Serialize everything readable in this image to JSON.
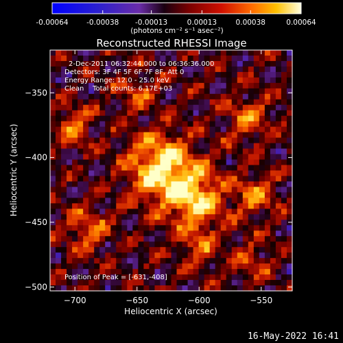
{
  "chart_data": {
    "type": "heatmap",
    "title": "Reconstructed RHESSI Image",
    "xlabel": "Heliocentric X (arcsec)",
    "ylabel": "Heliocentric Y (arcsec)",
    "xlim": [
      -720,
      -525
    ],
    "ylim": [
      -503,
      -317
    ],
    "xticks": [
      -700,
      -650,
      -600,
      -550
    ],
    "yticks": [
      -350,
      -400,
      -450,
      -500
    ],
    "colorbar": {
      "ticks": [
        -0.00064,
        -0.00038,
        -0.00013,
        0.00013,
        0.00038,
        0.00064
      ],
      "tick_labels": [
        "-0.00064",
        "-0.00038",
        "-0.00013",
        "0.00013",
        "0.00038",
        "0.00064"
      ],
      "unit_label": "(photons cm⁻² s⁻¹ asec⁻²)",
      "range": [
        -0.00064,
        0.00064
      ]
    },
    "info_lines": [
      "2-Dec-2011 06:32:44.000 to 06:36:36.000",
      "Detectors: 3F 4F 5F 6F 7F 8F, Att 0",
      "Energy Range: 12.0 - 25.0 keV",
      "Clean    Total counts: 6.17E+03"
    ],
    "peak_label": "Position of Peak = [-631,-408]",
    "peak": {
      "x": -631,
      "y": -408
    },
    "grid": false
  },
  "footer_timestamp": "16-May-2022 16:41",
  "colors": {
    "background": "#000000",
    "foreground": "#ffffff",
    "colormap": [
      "#0000ff",
      "#3a1fb8",
      "#6a2ca8",
      "#2a0000",
      "#b00000",
      "#ff5000",
      "#ffb000",
      "#ffffc0"
    ]
  }
}
